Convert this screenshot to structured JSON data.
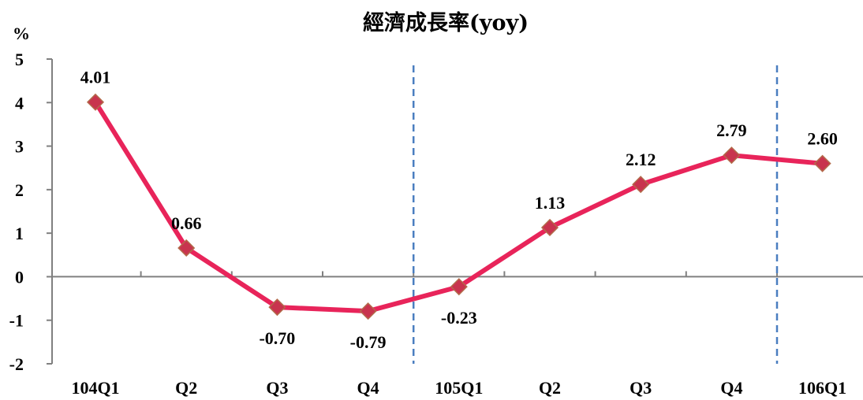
{
  "chart_data": {
    "type": "line",
    "title": "經濟成長率(yoy)",
    "ylabel": "%",
    "xlabel": "",
    "categories": [
      "104Q1",
      "Q2",
      "Q3",
      "Q4",
      "105Q1",
      "Q2",
      "Q3",
      "Q4",
      "106Q1"
    ],
    "series": [
      {
        "values": [
          4.01,
          0.66,
          -0.7,
          -0.79,
          -0.23,
          1.13,
          2.12,
          2.79,
          2.6
        ],
        "data_labels": [
          "4.01",
          "0.66",
          "-0.70",
          "-0.79",
          "-0.23",
          "1.13",
          "2.12",
          "2.79",
          "2.60"
        ],
        "color": "#e8245a",
        "marker_color": "#c8344e"
      }
    ],
    "ylim": [
      -2,
      5
    ],
    "yticks": [
      "5",
      "4",
      "3",
      "2",
      "1",
      "0",
      "-1",
      "-2"
    ],
    "grid": false,
    "year_separators_before_categories": [
      "105Q1",
      "106Q1"
    ],
    "separator_color": "#4a7ec0",
    "axis_color": "#808080"
  }
}
